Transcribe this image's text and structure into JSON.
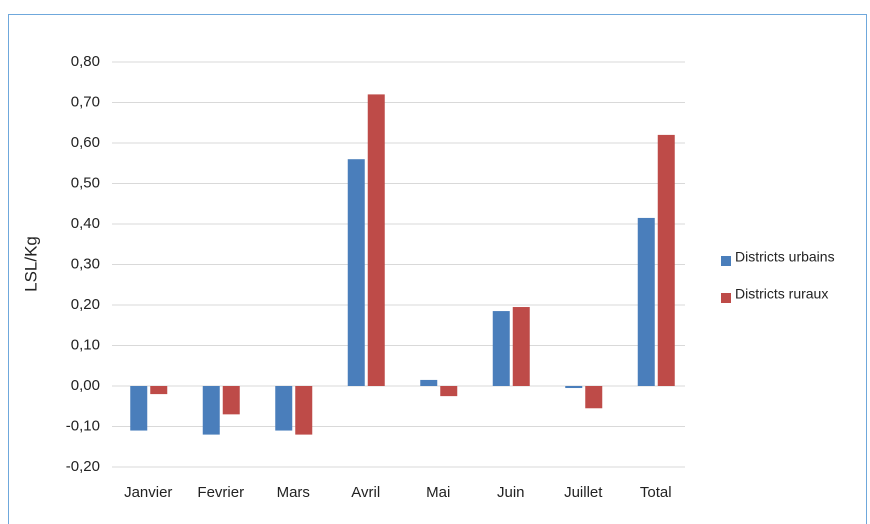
{
  "chart_data": {
    "type": "bar",
    "y_label": "LSL/Kg",
    "categories": [
      "Janvier",
      "Fevrier",
      "Mars",
      "Avril",
      "Mai",
      "Juin",
      "Juillet",
      "Total"
    ],
    "series": [
      {
        "name": "Districts urbains",
        "color": "#4a7ebb",
        "values": [
          -0.11,
          -0.12,
          -0.11,
          0.56,
          0.015,
          0.185,
          -0.005,
          0.415
        ]
      },
      {
        "name": "Districts ruraux",
        "color": "#be4b48",
        "values": [
          -0.02,
          -0.07,
          -0.12,
          0.72,
          -0.025,
          0.195,
          -0.055,
          0.62
        ]
      }
    ],
    "ylim": [
      -0.2,
      0.8
    ],
    "yticks": [
      {
        "value": -0.2,
        "label": "-0,20"
      },
      {
        "value": -0.1,
        "label": "-0,10"
      },
      {
        "value": 0,
        "label": "0,00"
      },
      {
        "value": 0.1,
        "label": "0,10"
      },
      {
        "value": 0.2,
        "label": "0,20"
      },
      {
        "value": 0.3,
        "label": "0,30"
      },
      {
        "value": 0.4,
        "label": "0,40"
      },
      {
        "value": 0.5,
        "label": "0,50"
      },
      {
        "value": 0.6,
        "label": "0,60"
      },
      {
        "value": 0.7,
        "label": "0,70"
      },
      {
        "value": 0.8,
        "label": "0,80"
      }
    ],
    "grid": true,
    "legend": "right"
  }
}
